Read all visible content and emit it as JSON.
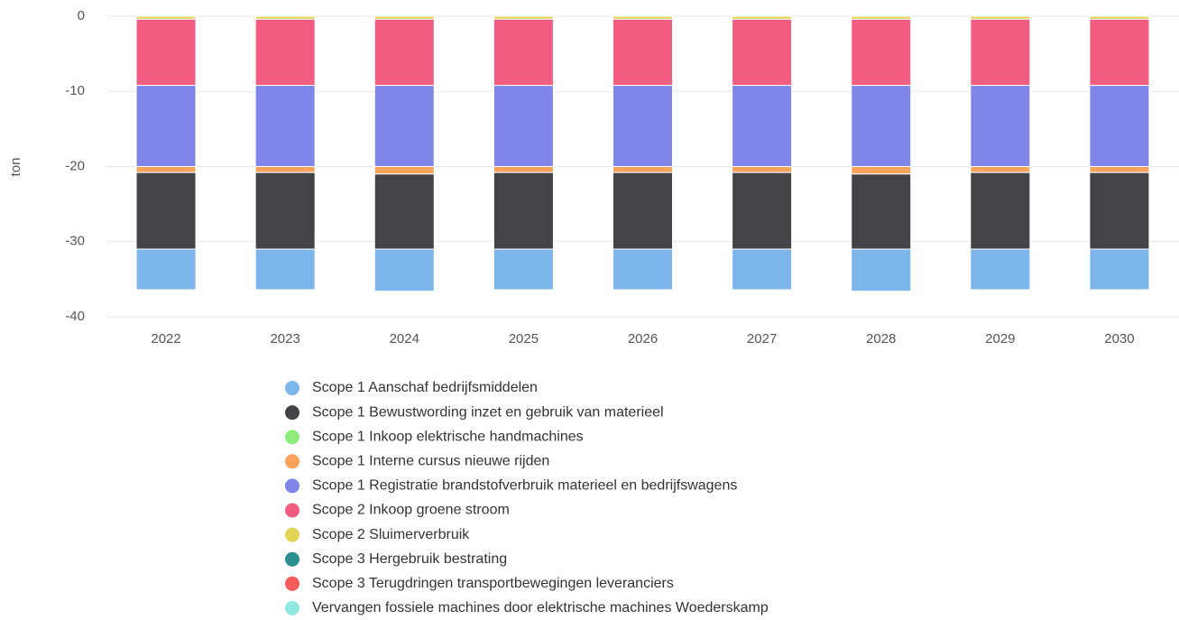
{
  "chart_data": {
    "type": "bar",
    "stacked": true,
    "y_label": "ton",
    "categories": [
      "2022",
      "2023",
      "2024",
      "2025",
      "2026",
      "2027",
      "2028",
      "2029",
      "2030"
    ],
    "ylim": [
      -40,
      0
    ],
    "yticks": [
      0,
      -10,
      -20,
      -30,
      -40
    ],
    "grid": true,
    "series": [
      {
        "name": "Scope 1 Aanschaf bedrijfsmiddelen",
        "color": "#7cb5ec",
        "values": [
          -5.4,
          -5.4,
          -5.6,
          -5.4,
          -5.4,
          -5.4,
          -5.6,
          -5.4,
          -5.4
        ]
      },
      {
        "name": "Scope 1 Bewustwording inzet en gebruik van materieel",
        "color": "#434348",
        "values": [
          -10.2,
          -10.2,
          -10.0,
          -10.2,
          -10.2,
          -10.2,
          -10.0,
          -10.2,
          -10.2
        ]
      },
      {
        "name": "Scope 1 Inkoop elektrische handmachines",
        "color": "#90ed7d",
        "values": [
          0,
          0,
          0,
          0,
          0,
          0,
          0,
          0,
          0
        ]
      },
      {
        "name": "Scope 1 Interne cursus nieuwe rijden",
        "color": "#f7a35c",
        "values": [
          -0.8,
          -0.8,
          -1.0,
          -0.8,
          -0.8,
          -0.8,
          -1.0,
          -0.8,
          -0.8
        ]
      },
      {
        "name": "Scope 1 Registratie brandstofverbruik materieel en bedrijfswagens",
        "color": "#8085e9",
        "values": [
          -10.8,
          -10.8,
          -10.8,
          -10.8,
          -10.8,
          -10.8,
          -10.8,
          -10.8,
          -10.8
        ]
      },
      {
        "name": "Scope 2 Inkoop groene stroom",
        "color": "#f15c80",
        "values": [
          -8.8,
          -8.8,
          -8.8,
          -8.8,
          -8.8,
          -8.8,
          -8.8,
          -8.8,
          -8.8
        ]
      },
      {
        "name": "Scope 2 Sluimerverbruik",
        "color": "#e4d354",
        "values": [
          -0.4,
          -0.4,
          -0.4,
          -0.4,
          -0.4,
          -0.4,
          -0.4,
          -0.4,
          -0.4
        ]
      },
      {
        "name": "Scope 3 Hergebruik bestrating",
        "color": "#2b908f",
        "values": [
          0,
          0,
          0,
          0,
          0,
          0,
          0,
          0,
          0
        ]
      },
      {
        "name": "Scope 3 Terugdringen transportbewegingen leveranciers",
        "color": "#f45b5b",
        "values": [
          0,
          0,
          0,
          0,
          0,
          0,
          0,
          0,
          0
        ]
      },
      {
        "name": "Vervangen fossiele machines door elektrische machines Woederskamp",
        "color": "#91e8e1",
        "values": [
          0,
          0,
          0,
          0,
          0,
          0,
          0,
          0,
          0
        ]
      }
    ]
  }
}
